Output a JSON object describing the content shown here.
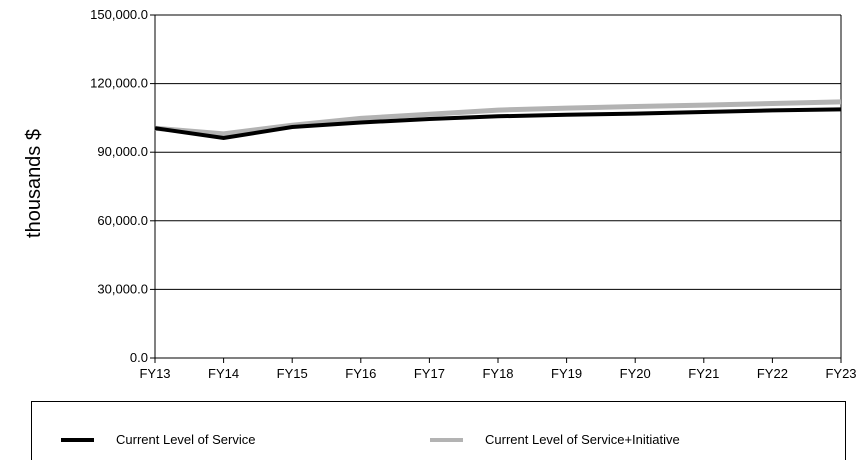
{
  "chart_data": {
    "type": "line",
    "title": "",
    "xlabel": "",
    "ylabel": "thousands $",
    "categories": [
      "FY13",
      "FY14",
      "FY15",
      "FY16",
      "FY17",
      "FY18",
      "FY19",
      "FY20",
      "FY21",
      "FY22",
      "FY23"
    ],
    "y_ticks": [
      "0.0",
      "30,000.0",
      "60,000.0",
      "90,000.0",
      "120,000.0",
      "150,000.0"
    ],
    "ylim": [
      0,
      150000
    ],
    "grid": "horizontal",
    "legend_position": "bottom",
    "series": [
      {
        "name": "Current Level of Service+Initiative",
        "color": "#b3b3b3",
        "values": [
          100500,
          98000,
          101800,
          104800,
          106600,
          108400,
          109300,
          110000,
          110600,
          111300,
          112000
        ]
      },
      {
        "name": "Current Level of Service",
        "color": "#000000",
        "values": [
          100500,
          96200,
          101000,
          103000,
          104500,
          105700,
          106400,
          106900,
          107600,
          108300,
          108700
        ]
      }
    ]
  },
  "legend": {
    "items": [
      {
        "label": "Current Level of Service",
        "color": "#000000"
      },
      {
        "label": "Current Level of Service+Initiative",
        "color": "#b3b3b3"
      }
    ]
  }
}
